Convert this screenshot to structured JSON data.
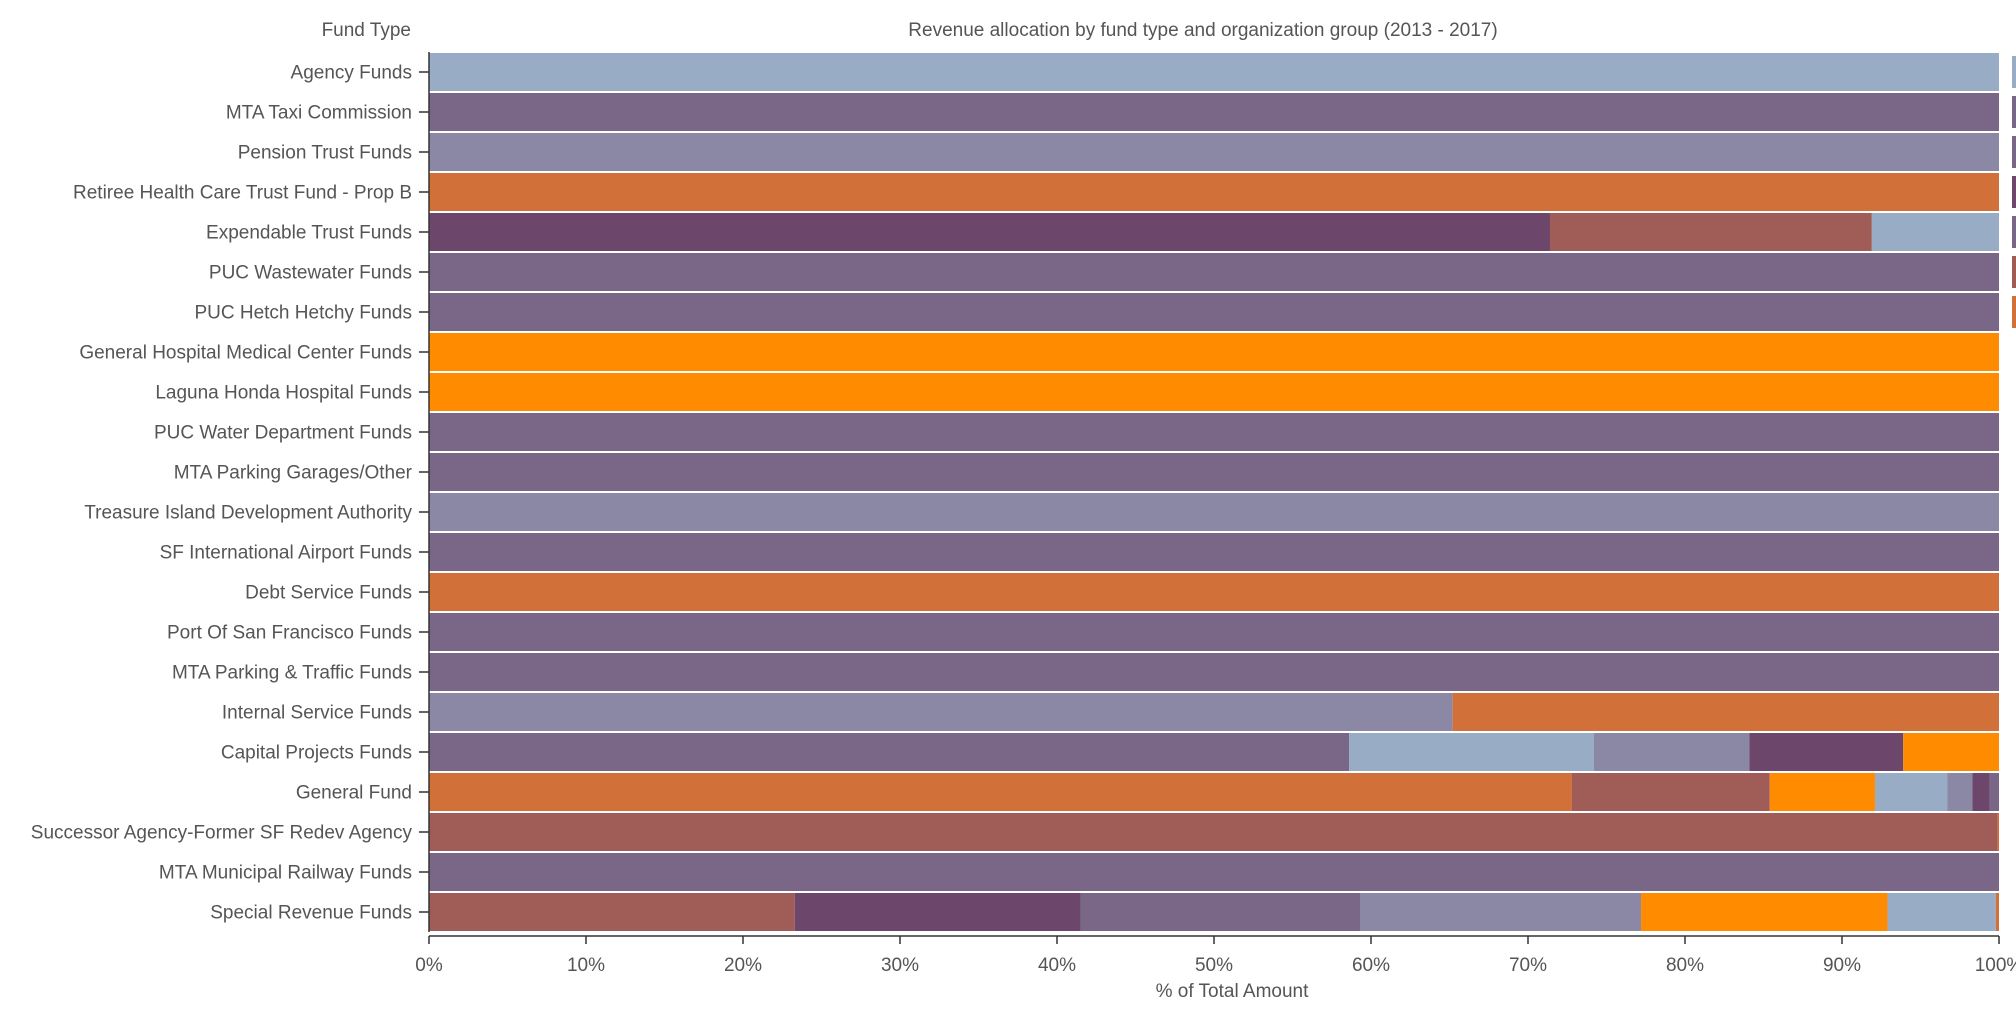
{
  "chart_data": {
    "type": "bar",
    "stacked": true,
    "orientation": "horizontal",
    "title": "Revenue allocation by fund type and organization group (2013 - 2017)",
    "y_axis_title": "Fund Type",
    "xlabel": "% of Total Amount",
    "xlim": [
      0,
      100
    ],
    "x_ticks": [
      "0%",
      "10%",
      "20%",
      "30%",
      "40%",
      "50%",
      "60%",
      "70%",
      "80%",
      "90%",
      "100%"
    ],
    "palette": {
      "light_blue": "#98adc5",
      "purple": "#7a6787",
      "slate": "#8b88a6",
      "dark_plum": "#6d466b",
      "burnt_orange": "#d2703a",
      "brick": "#a05c56",
      "orange": "#ff8c00"
    },
    "legend_placement": "right (cut off)",
    "legend_swatches": [
      "light_blue",
      "purple",
      "purple",
      "dark_plum",
      "purple",
      "brick",
      "burnt_orange"
    ],
    "categories": [
      "Agency Funds",
      "MTA Taxi Commission",
      "Pension Trust Funds",
      "Retiree Health Care Trust Fund - Prop B",
      "Expendable Trust Funds",
      "PUC Wastewater Funds",
      "PUC Hetch Hetchy Funds",
      "General Hospital Medical Center Funds",
      "Laguna Honda Hospital Funds",
      "PUC Water Department Funds",
      "MTA Parking Garages/Other",
      "Treasure Island Development Authority",
      "SF International Airport Funds",
      "Debt Service Funds",
      "Port Of San Francisco Funds",
      "MTA Parking & Traffic Funds",
      "Internal Service Funds",
      "Capital Projects Funds",
      "General Fund",
      "Successor Agency-Former SF Redev Agency",
      "MTA Municipal Railway Funds",
      "Special Revenue Funds"
    ],
    "rows": [
      {
        "segments": [
          {
            "color": "light_blue",
            "value": 100
          }
        ]
      },
      {
        "segments": [
          {
            "color": "purple",
            "value": 100
          }
        ]
      },
      {
        "segments": [
          {
            "color": "slate",
            "value": 100
          }
        ]
      },
      {
        "segments": [
          {
            "color": "burnt_orange",
            "value": 100
          }
        ]
      },
      {
        "segments": [
          {
            "color": "dark_plum",
            "value": 71.4
          },
          {
            "color": "brick",
            "value": 20.5
          },
          {
            "color": "light_blue",
            "value": 8.1
          }
        ]
      },
      {
        "segments": [
          {
            "color": "purple",
            "value": 100
          }
        ]
      },
      {
        "segments": [
          {
            "color": "purple",
            "value": 100
          }
        ]
      },
      {
        "segments": [
          {
            "color": "orange",
            "value": 100
          }
        ]
      },
      {
        "segments": [
          {
            "color": "orange",
            "value": 100
          }
        ]
      },
      {
        "segments": [
          {
            "color": "purple",
            "value": 100
          }
        ]
      },
      {
        "segments": [
          {
            "color": "purple",
            "value": 100
          }
        ]
      },
      {
        "segments": [
          {
            "color": "slate",
            "value": 100
          }
        ]
      },
      {
        "segments": [
          {
            "color": "purple",
            "value": 100
          }
        ]
      },
      {
        "segments": [
          {
            "color": "burnt_orange",
            "value": 100
          }
        ]
      },
      {
        "segments": [
          {
            "color": "purple",
            "value": 100
          }
        ]
      },
      {
        "segments": [
          {
            "color": "purple",
            "value": 100
          }
        ]
      },
      {
        "segments": [
          {
            "color": "slate",
            "value": 65.2
          },
          {
            "color": "burnt_orange",
            "value": 34.8
          }
        ]
      },
      {
        "segments": [
          {
            "color": "purple",
            "value": 58.6
          },
          {
            "color": "light_blue",
            "value": 15.6
          },
          {
            "color": "slate",
            "value": 9.9
          },
          {
            "color": "dark_plum",
            "value": 9.8
          },
          {
            "color": "orange",
            "value": 6.1
          }
        ]
      },
      {
        "segments": [
          {
            "color": "burnt_orange",
            "value": 72.8
          },
          {
            "color": "brick",
            "value": 12.6
          },
          {
            "color": "orange",
            "value": 6.7
          },
          {
            "color": "light_blue",
            "value": 4.6
          },
          {
            "color": "slate",
            "value": 1.6
          },
          {
            "color": "dark_plum",
            "value": 1.1
          },
          {
            "color": "purple",
            "value": 0.6
          }
        ]
      },
      {
        "segments": [
          {
            "color": "brick",
            "value": 99.9
          },
          {
            "color": "burnt_orange",
            "value": 0.1
          }
        ]
      },
      {
        "segments": [
          {
            "color": "purple",
            "value": 100
          }
        ]
      },
      {
        "segments": [
          {
            "color": "brick",
            "value": 23.3
          },
          {
            "color": "dark_plum",
            "value": 18.2
          },
          {
            "color": "purple",
            "value": 17.8
          },
          {
            "color": "slate",
            "value": 17.9
          },
          {
            "color": "orange",
            "value": 15.7
          },
          {
            "color": "light_blue",
            "value": 6.9
          },
          {
            "color": "burnt_orange",
            "value": 0.2
          }
        ]
      }
    ]
  }
}
